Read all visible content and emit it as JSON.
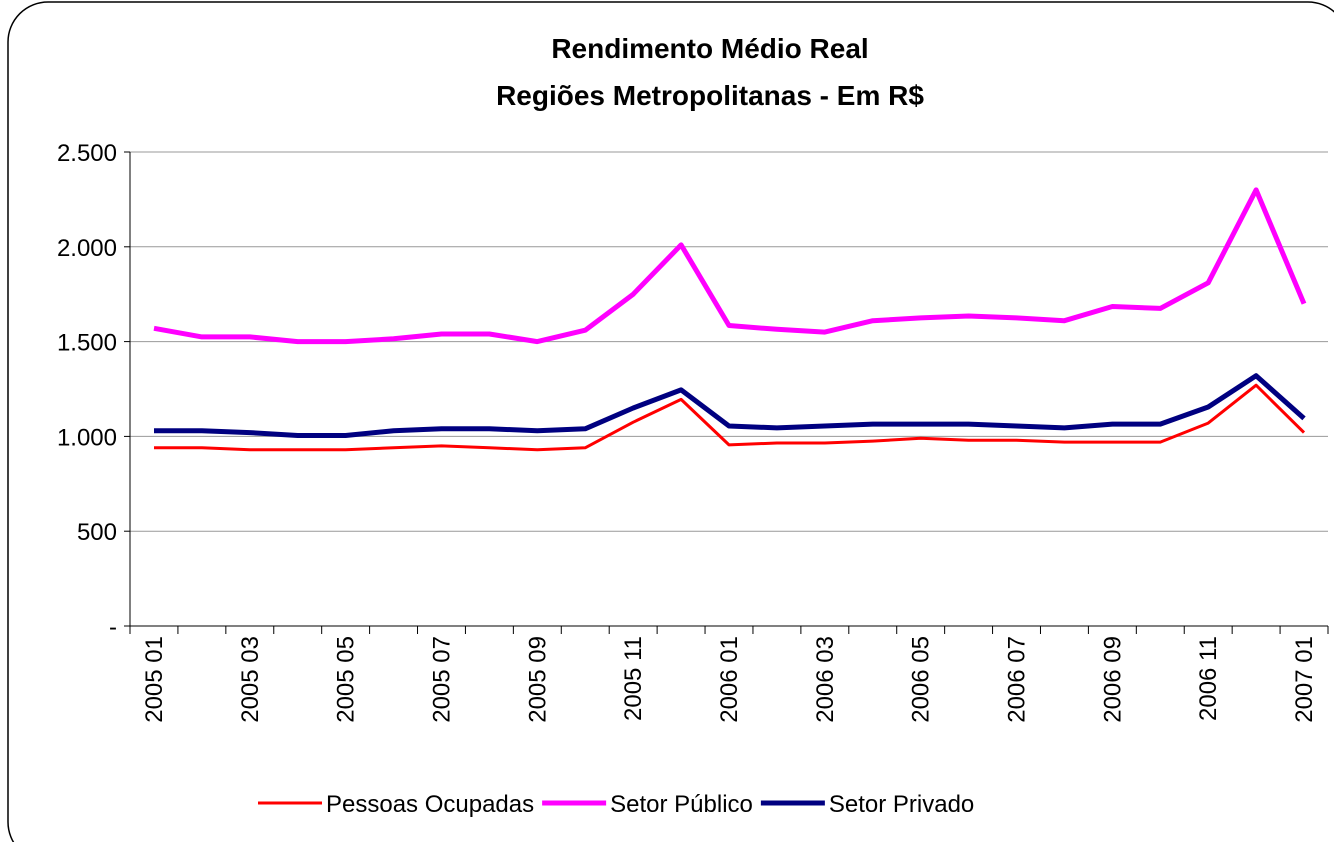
{
  "chart_data": {
    "type": "line",
    "title": "Rendimento Médio Real",
    "subtitle": "Regiões Metropolitanas - Em R$",
    "categories": [
      "2005 01",
      null,
      "2005 03",
      null,
      "2005 05",
      null,
      "2005 07",
      null,
      "2005 09",
      null,
      "2005 11",
      null,
      "2006 01",
      null,
      "2006 03",
      null,
      "2006 05",
      null,
      "2006 07",
      null,
      "2006 09",
      null,
      "2006 11",
      null,
      "2007 01"
    ],
    "series": [
      {
        "name": "Pessoas Ocupadas",
        "color": "#ff0000",
        "width": 3,
        "values": [
          940,
          940,
          930,
          930,
          930,
          940,
          950,
          940,
          930,
          940,
          1075,
          1195,
          955,
          965,
          965,
          975,
          990,
          980,
          980,
          970,
          970,
          970,
          1070,
          1270,
          1020
        ]
      },
      {
        "name": "Setor Público",
        "color": "#ff00ff",
        "width": 5,
        "values": [
          1570,
          1525,
          1525,
          1500,
          1500,
          1515,
          1540,
          1540,
          1500,
          1560,
          1750,
          2010,
          1585,
          1565,
          1550,
          1610,
          1625,
          1635,
          1625,
          1610,
          1685,
          1675,
          1810,
          2300,
          1700
        ]
      },
      {
        "name": "Setor Privado",
        "color": "#000080",
        "width": 5,
        "values": [
          1030,
          1030,
          1020,
          1005,
          1005,
          1030,
          1040,
          1040,
          1030,
          1040,
          1150,
          1245,
          1055,
          1045,
          1055,
          1065,
          1065,
          1065,
          1055,
          1045,
          1065,
          1065,
          1155,
          1320,
          1095
        ]
      }
    ],
    "ylim": [
      0,
      2500
    ],
    "yticks": [
      {
        "value": 0,
        "label": "-"
      },
      500,
      {
        "value": 1000,
        "label": "1.000"
      },
      {
        "value": 1500,
        "label": "1.500"
      },
      {
        "value": 2000,
        "label": "2.000"
      },
      {
        "value": 2500,
        "label": "2.500"
      }
    ],
    "grid": true,
    "legend": "bottom"
  }
}
